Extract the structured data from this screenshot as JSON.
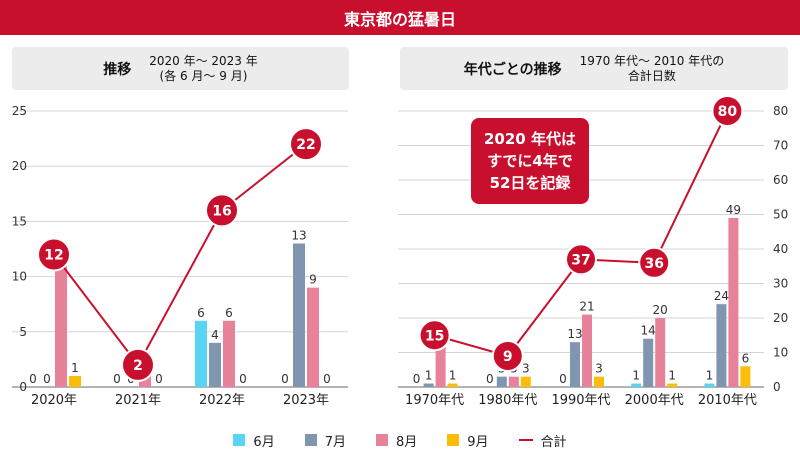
{
  "title": "東京都の猛暑日",
  "left_panel": {
    "lead": "推移",
    "sub_line1": "2020 年〜 2023 年",
    "sub_line2": "(各 6 月〜 9 月)"
  },
  "right_panel": {
    "lead": "年代ごとの推移",
    "sub_line1": "1970 年代〜 2010 年代の",
    "sub_line2": "合計日数"
  },
  "callout": {
    "line1": "2020 年代は",
    "line2": "すでに4年で",
    "line3": "52日を記録"
  },
  "legend": [
    {
      "label": "6月",
      "color": "#5ad4f5"
    },
    {
      "label": "7月",
      "color": "#7f95b0"
    },
    {
      "label": "8月",
      "color": "#e8829a"
    },
    {
      "label": "9月",
      "color": "#fbbd08"
    },
    {
      "label": "合計",
      "color": "#c8102e"
    }
  ],
  "chart_data": [
    {
      "type": "bar",
      "title": "推移",
      "categories": [
        "2020年",
        "2021年",
        "2022年",
        "2023年"
      ],
      "ylim": [
        0,
        25
      ],
      "yticks": [
        0,
        5,
        10,
        15,
        20,
        25
      ],
      "series": [
        {
          "name": "6月",
          "values": [
            0,
            0,
            6,
            0
          ]
        },
        {
          "name": "7月",
          "values": [
            0,
            0,
            4,
            13
          ]
        },
        {
          "name": "8月",
          "values": [
            11,
            2,
            6,
            9
          ]
        },
        {
          "name": "9月",
          "values": [
            1,
            0,
            0,
            0
          ]
        }
      ],
      "line": {
        "name": "合計",
        "values": [
          12,
          2,
          16,
          22
        ]
      }
    },
    {
      "type": "bar",
      "title": "年代ごとの推移",
      "categories": [
        "1970年代",
        "1980年代",
        "1990年代",
        "2000年代",
        "2010年代"
      ],
      "ylim": [
        0,
        80
      ],
      "yticks": [
        0,
        10,
        20,
        30,
        40,
        50,
        60,
        70,
        80
      ],
      "series": [
        {
          "name": "6月",
          "values": [
            0,
            0,
            0,
            1,
            1
          ]
        },
        {
          "name": "7月",
          "values": [
            1,
            3,
            13,
            14,
            24
          ]
        },
        {
          "name": "8月",
          "values": [
            13,
            3,
            21,
            20,
            49
          ]
        },
        {
          "name": "9月",
          "values": [
            1,
            3,
            3,
            1,
            6
          ]
        }
      ],
      "line": {
        "name": "合計",
        "values": [
          15,
          9,
          37,
          36,
          80
        ]
      }
    }
  ]
}
